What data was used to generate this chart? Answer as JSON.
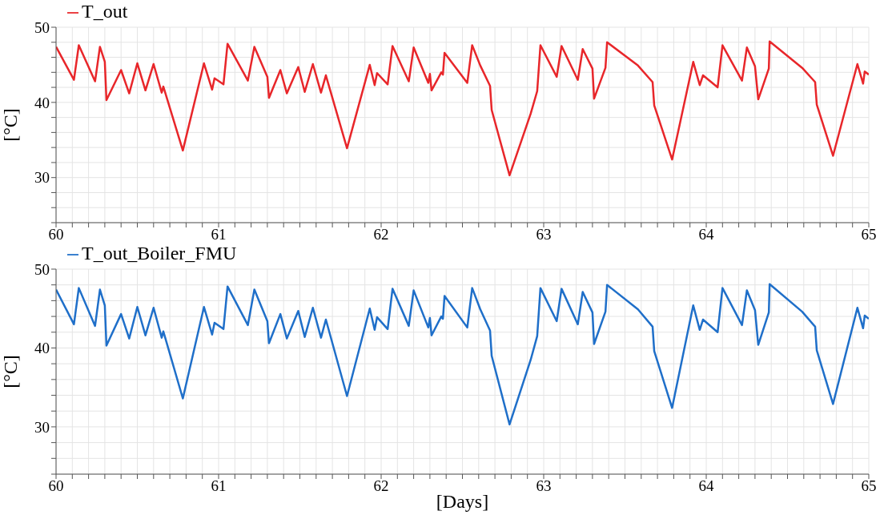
{
  "chart_data": [
    {
      "type": "line",
      "ylabel": "[°C]",
      "legend": "top left",
      "grid": true,
      "xlim": [
        60,
        65
      ],
      "ylim": [
        24,
        50
      ],
      "xticks": [
        60,
        {
          "value": 60.1,
          "label": null
        },
        {
          "value": 60.2,
          "label": null
        },
        {
          "value": 60.3,
          "label": null
        },
        {
          "value": 60.4,
          "label": null
        },
        {
          "value": 60.5,
          "label": null
        },
        {
          "value": 60.6,
          "label": null
        },
        {
          "value": 60.7,
          "label": null
        },
        {
          "value": 60.8,
          "label": null
        },
        {
          "value": 60.9,
          "label": null
        },
        61,
        {
          "value": 61.1,
          "label": null
        },
        {
          "value": 61.2,
          "label": null
        },
        {
          "value": 61.3,
          "label": null
        },
        {
          "value": 61.4,
          "label": null
        },
        {
          "value": 61.5,
          "label": null
        },
        {
          "value": 61.6,
          "label": null
        },
        {
          "value": 61.7,
          "label": null
        },
        {
          "value": 61.8,
          "label": null
        },
        {
          "value": 61.9,
          "label": null
        },
        62,
        {
          "value": 62.1,
          "label": null
        },
        {
          "value": 62.2,
          "label": null
        },
        {
          "value": 62.3,
          "label": null
        },
        {
          "value": 62.4,
          "label": null
        },
        {
          "value": 62.5,
          "label": null
        },
        {
          "value": 62.6,
          "label": null
        },
        {
          "value": 62.7,
          "label": null
        },
        {
          "value": 62.8,
          "label": null
        },
        {
          "value": 62.9,
          "label": null
        },
        63,
        {
          "value": 63.1,
          "label": null
        },
        {
          "value": 63.2,
          "label": null
        },
        {
          "value": 63.3,
          "label": null
        },
        {
          "value": 63.4,
          "label": null
        },
        {
          "value": 63.5,
          "label": null
        },
        {
          "value": 63.6,
          "label": null
        },
        {
          "value": 63.7,
          "label": null
        },
        {
          "value": 63.8,
          "label": null
        },
        {
          "value": 63.9,
          "label": null
        },
        64,
        {
          "value": 64.1,
          "label": null
        },
        {
          "value": 64.2,
          "label": null
        },
        {
          "value": 64.3,
          "label": null
        },
        {
          "value": 64.4,
          "label": null
        },
        {
          "value": 64.5,
          "label": null
        },
        {
          "value": 64.6,
          "label": null
        },
        {
          "value": 64.7,
          "label": null
        },
        {
          "value": 64.8,
          "label": null
        },
        {
          "value": 64.9,
          "label": null
        },
        65
      ],
      "yticks": [
        {
          "value": 24,
          "label": null
        },
        {
          "value": 26,
          "label": null
        },
        {
          "value": 28,
          "label": null
        },
        30,
        {
          "value": 32,
          "label": null
        },
        {
          "value": 34,
          "label": null
        },
        {
          "value": 36,
          "label": null
        },
        {
          "value": 38,
          "label": null
        },
        40,
        {
          "value": 42,
          "label": null
        },
        {
          "value": 44,
          "label": null
        },
        {
          "value": 46,
          "label": null
        },
        {
          "value": 48,
          "label": null
        },
        50
      ],
      "x": [
        60.0,
        60.11,
        60.14,
        60.24,
        60.27,
        60.3,
        60.31,
        60.4,
        60.45,
        60.5,
        60.55,
        60.6,
        60.65,
        60.66,
        60.67,
        60.78,
        60.91,
        60.96,
        60.975,
        61.03,
        61.055,
        61.18,
        61.22,
        61.3,
        61.31,
        61.38,
        61.42,
        61.49,
        61.53,
        61.58,
        61.63,
        61.66,
        61.79,
        61.93,
        61.96,
        61.975,
        62.04,
        62.07,
        62.17,
        62.2,
        62.29,
        62.3,
        62.31,
        62.37,
        62.38,
        62.39,
        62.53,
        62.56,
        62.61,
        62.67,
        62.68,
        62.79,
        62.92,
        62.96,
        62.98,
        63.08,
        63.11,
        63.21,
        63.24,
        63.3,
        63.31,
        63.38,
        63.39,
        63.58,
        63.67,
        63.68,
        63.79,
        63.92,
        63.96,
        63.98,
        64.07,
        64.1,
        64.22,
        64.25,
        64.3,
        64.32,
        64.385,
        64.39,
        64.59,
        64.67,
        64.68,
        64.78,
        64.93,
        64.965,
        64.975,
        65.0
      ],
      "series": [
        {
          "name": "T_out",
          "color": "#e8262a",
          "values": [
            47.4,
            43.0,
            47.6,
            42.8,
            47.4,
            45.4,
            40.3,
            44.3,
            41.2,
            45.2,
            41.6,
            45.1,
            41.3,
            42.1,
            41.4,
            33.6,
            45.2,
            41.7,
            43.2,
            42.4,
            47.8,
            42.9,
            47.4,
            43.4,
            40.6,
            44.3,
            41.2,
            44.7,
            41.4,
            45.1,
            41.3,
            43.6,
            33.9,
            45.0,
            42.3,
            43.9,
            42.4,
            47.5,
            42.8,
            47.3,
            42.6,
            43.8,
            41.6,
            44.0,
            43.7,
            46.6,
            42.6,
            47.6,
            44.9,
            42.2,
            39.0,
            30.3,
            38.5,
            41.5,
            47.6,
            43.4,
            47.5,
            43.0,
            47.1,
            44.5,
            40.5,
            44.6,
            48.0,
            44.9,
            42.7,
            39.6,
            32.4,
            45.4,
            42.3,
            43.6,
            42.0,
            47.6,
            42.9,
            47.3,
            44.8,
            40.4,
            44.5,
            48.1,
            44.6,
            42.7,
            39.7,
            32.9,
            45.1,
            42.5,
            44.1,
            43.7
          ]
        }
      ]
    },
    {
      "type": "line",
      "ylabel": "[°C]",
      "xlabel": "[Days]",
      "legend": "top left",
      "grid": true,
      "xlim": [
        60,
        65
      ],
      "ylim": [
        24,
        50
      ],
      "xticks": [
        60,
        {
          "value": 60.1,
          "label": null
        },
        {
          "value": 60.2,
          "label": null
        },
        {
          "value": 60.3,
          "label": null
        },
        {
          "value": 60.4,
          "label": null
        },
        {
          "value": 60.5,
          "label": null
        },
        {
          "value": 60.6,
          "label": null
        },
        {
          "value": 60.7,
          "label": null
        },
        {
          "value": 60.8,
          "label": null
        },
        {
          "value": 60.9,
          "label": null
        },
        61,
        {
          "value": 61.1,
          "label": null
        },
        {
          "value": 61.2,
          "label": null
        },
        {
          "value": 61.3,
          "label": null
        },
        {
          "value": 61.4,
          "label": null
        },
        {
          "value": 61.5,
          "label": null
        },
        {
          "value": 61.6,
          "label": null
        },
        {
          "value": 61.7,
          "label": null
        },
        {
          "value": 61.8,
          "label": null
        },
        {
          "value": 61.9,
          "label": null
        },
        62,
        {
          "value": 62.1,
          "label": null
        },
        {
          "value": 62.2,
          "label": null
        },
        {
          "value": 62.3,
          "label": null
        },
        {
          "value": 62.4,
          "label": null
        },
        {
          "value": 62.5,
          "label": null
        },
        {
          "value": 62.6,
          "label": null
        },
        {
          "value": 62.7,
          "label": null
        },
        {
          "value": 62.8,
          "label": null
        },
        {
          "value": 62.9,
          "label": null
        },
        63,
        {
          "value": 63.1,
          "label": null
        },
        {
          "value": 63.2,
          "label": null
        },
        {
          "value": 63.3,
          "label": null
        },
        {
          "value": 63.4,
          "label": null
        },
        {
          "value": 63.5,
          "label": null
        },
        {
          "value": 63.6,
          "label": null
        },
        {
          "value": 63.7,
          "label": null
        },
        {
          "value": 63.8,
          "label": null
        },
        {
          "value": 63.9,
          "label": null
        },
        64,
        {
          "value": 64.1,
          "label": null
        },
        {
          "value": 64.2,
          "label": null
        },
        {
          "value": 64.3,
          "label": null
        },
        {
          "value": 64.4,
          "label": null
        },
        {
          "value": 64.5,
          "label": null
        },
        {
          "value": 64.6,
          "label": null
        },
        {
          "value": 64.7,
          "label": null
        },
        {
          "value": 64.8,
          "label": null
        },
        {
          "value": 64.9,
          "label": null
        },
        65
      ],
      "yticks": [
        {
          "value": 24,
          "label": null
        },
        {
          "value": 26,
          "label": null
        },
        {
          "value": 28,
          "label": null
        },
        30,
        {
          "value": 32,
          "label": null
        },
        {
          "value": 34,
          "label": null
        },
        {
          "value": 36,
          "label": null
        },
        {
          "value": 38,
          "label": null
        },
        40,
        {
          "value": 42,
          "label": null
        },
        {
          "value": 44,
          "label": null
        },
        {
          "value": 46,
          "label": null
        },
        {
          "value": 48,
          "label": null
        },
        50
      ],
      "x": [
        60.0,
        60.11,
        60.14,
        60.24,
        60.27,
        60.3,
        60.31,
        60.4,
        60.45,
        60.5,
        60.55,
        60.6,
        60.65,
        60.66,
        60.67,
        60.78,
        60.91,
        60.96,
        60.975,
        61.03,
        61.055,
        61.18,
        61.22,
        61.3,
        61.31,
        61.38,
        61.42,
        61.49,
        61.53,
        61.58,
        61.63,
        61.66,
        61.79,
        61.93,
        61.96,
        61.975,
        62.04,
        62.07,
        62.17,
        62.2,
        62.29,
        62.3,
        62.31,
        62.37,
        62.38,
        62.39,
        62.53,
        62.56,
        62.61,
        62.67,
        62.68,
        62.79,
        62.92,
        62.96,
        62.98,
        63.08,
        63.11,
        63.21,
        63.24,
        63.3,
        63.31,
        63.38,
        63.39,
        63.58,
        63.67,
        63.68,
        63.79,
        63.92,
        63.96,
        63.98,
        64.07,
        64.1,
        64.22,
        64.25,
        64.3,
        64.32,
        64.385,
        64.39,
        64.59,
        64.67,
        64.68,
        64.78,
        64.93,
        64.965,
        64.975,
        65.0
      ],
      "series": [
        {
          "name": "T_out_Boiler_FMU",
          "color": "#1f6fc9",
          "values": [
            47.4,
            43.0,
            47.6,
            42.8,
            47.4,
            45.4,
            40.3,
            44.3,
            41.2,
            45.2,
            41.6,
            45.1,
            41.3,
            42.1,
            41.4,
            33.6,
            45.2,
            41.7,
            43.2,
            42.4,
            47.8,
            42.9,
            47.4,
            43.4,
            40.6,
            44.3,
            41.2,
            44.7,
            41.4,
            45.1,
            41.3,
            43.6,
            33.9,
            45.0,
            42.3,
            43.9,
            42.4,
            47.5,
            42.8,
            47.3,
            42.6,
            43.8,
            41.6,
            44.0,
            43.7,
            46.6,
            42.6,
            47.6,
            44.9,
            42.2,
            39.0,
            30.3,
            38.5,
            41.5,
            47.6,
            43.4,
            47.5,
            43.0,
            47.1,
            44.5,
            40.5,
            44.6,
            48.0,
            44.9,
            42.7,
            39.6,
            32.4,
            45.4,
            42.3,
            43.6,
            42.0,
            47.6,
            42.9,
            47.3,
            44.8,
            40.4,
            44.5,
            48.1,
            44.6,
            42.7,
            39.7,
            32.9,
            45.1,
            42.5,
            44.1,
            43.7
          ]
        }
      ]
    }
  ]
}
